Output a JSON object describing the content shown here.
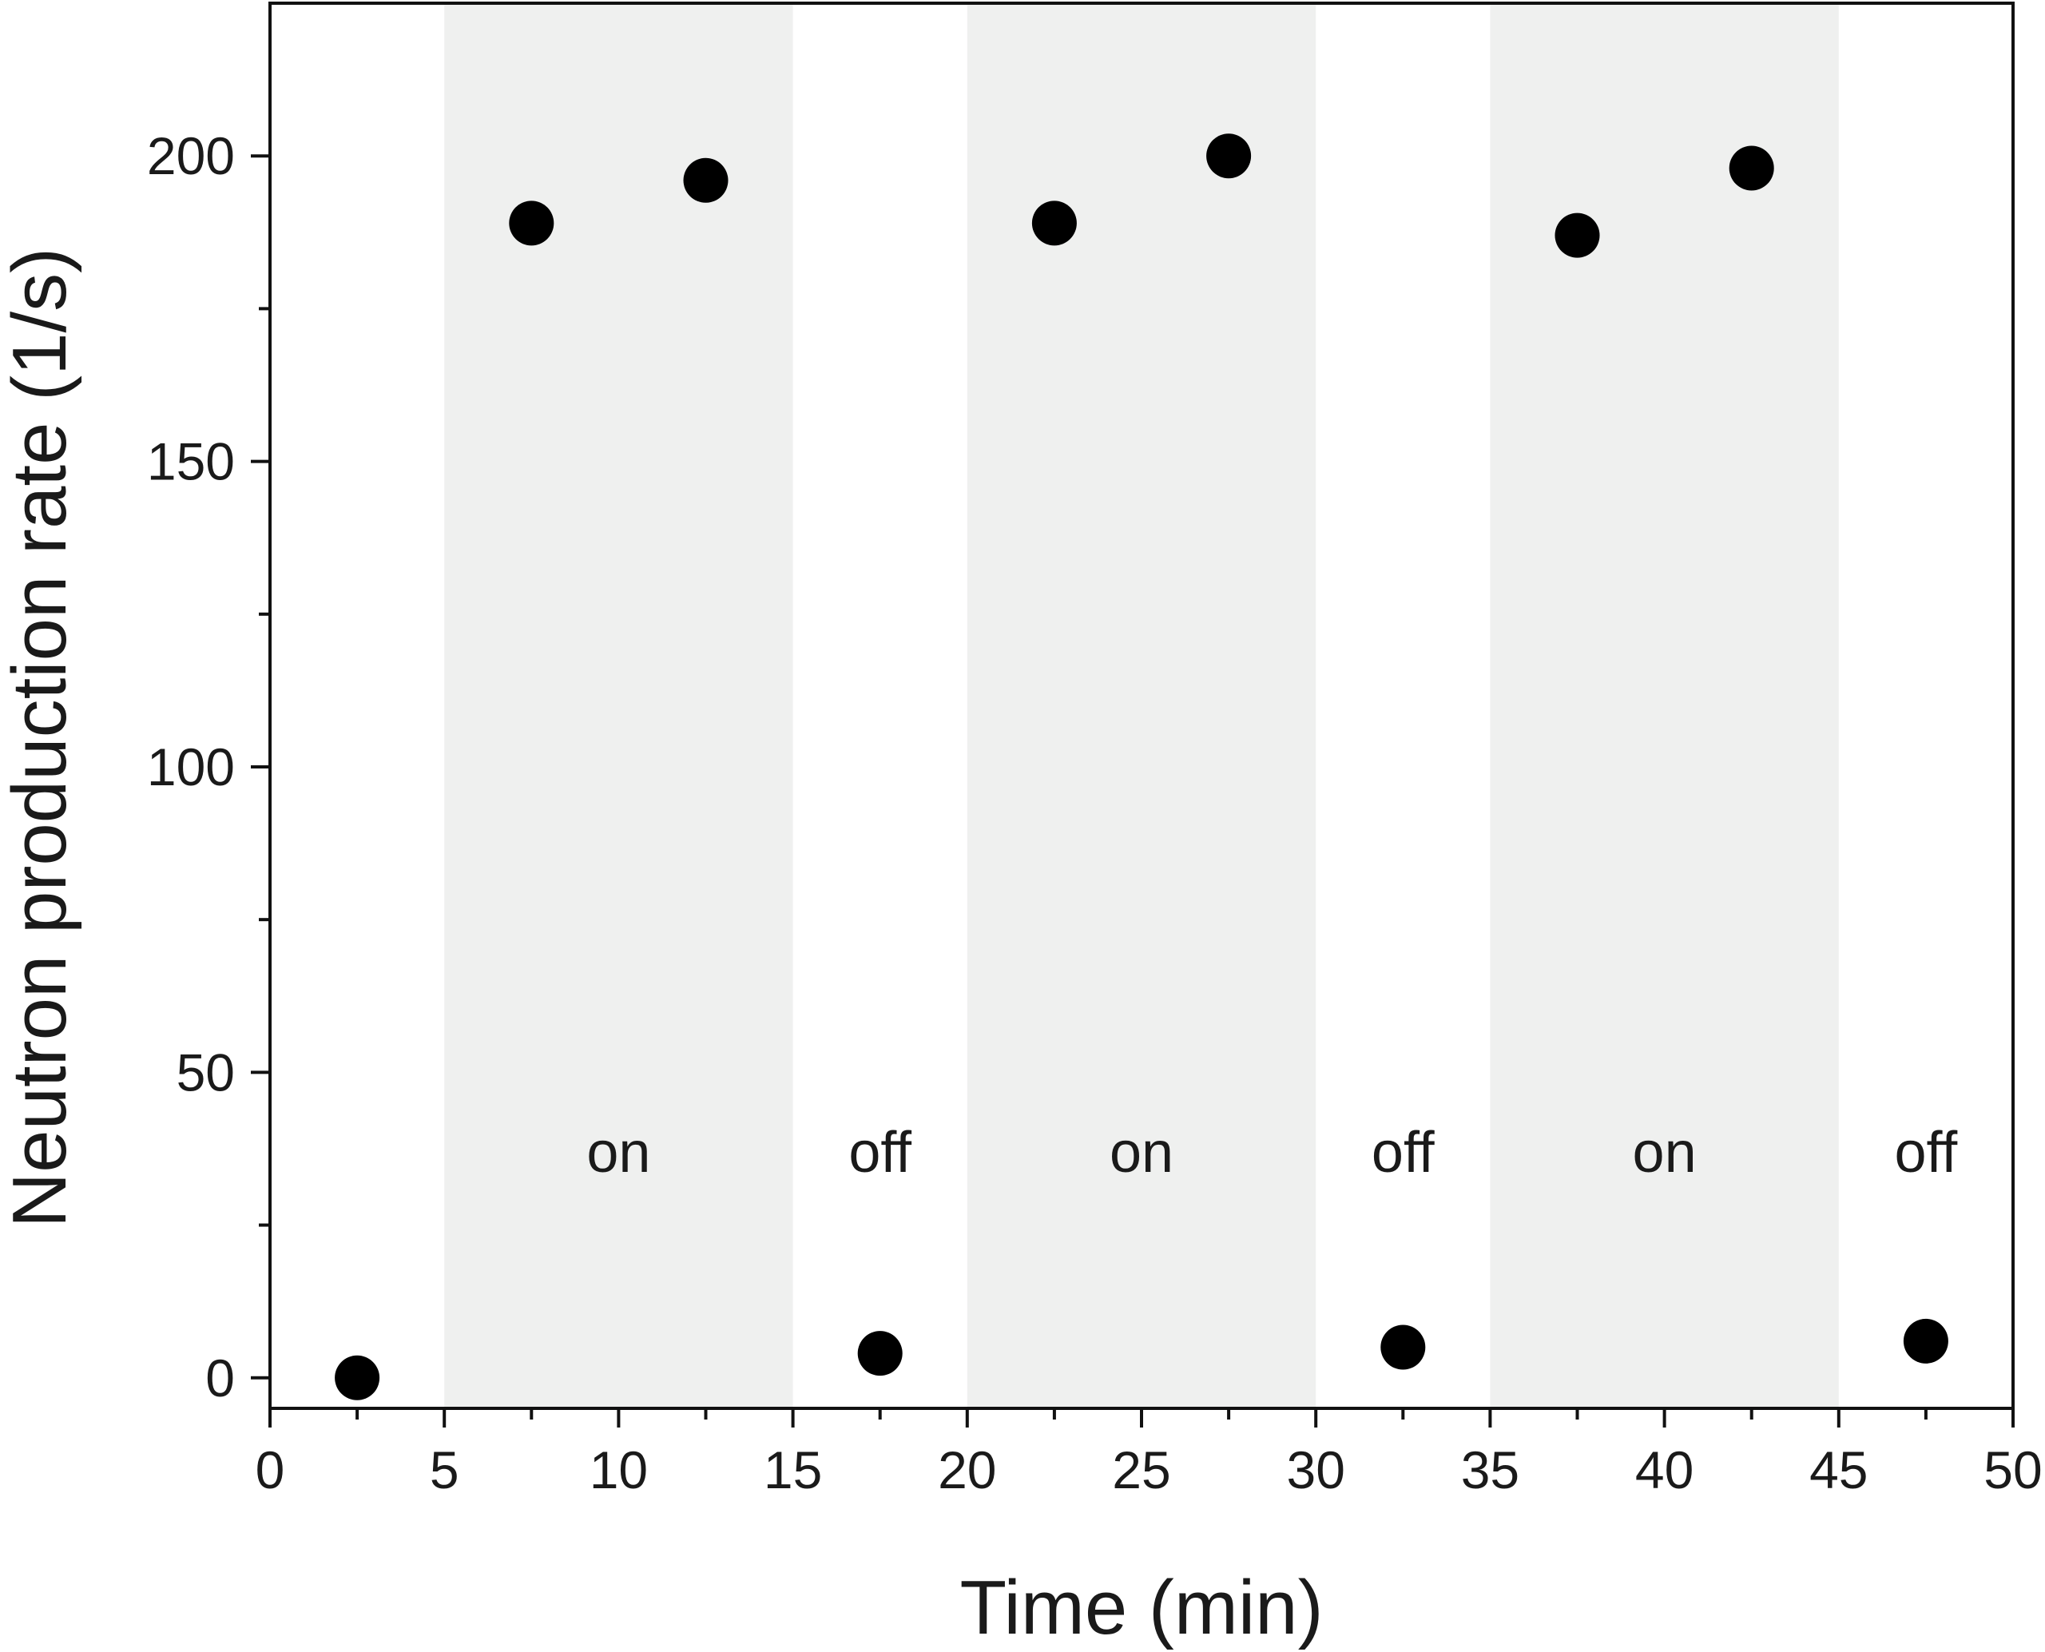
{
  "chart_data": {
    "type": "scatter",
    "xlabel": "Time (min)",
    "ylabel": "Neutron production rate (1/s)",
    "xlim": [
      0,
      50
    ],
    "ylim": [
      -5,
      225
    ],
    "x_ticks": [
      0,
      5,
      10,
      15,
      20,
      25,
      30,
      35,
      40,
      45,
      50
    ],
    "x_tick_labels": [
      "0",
      "5",
      "10",
      "15",
      "20",
      "25",
      "30",
      "35",
      "40",
      "45",
      "50"
    ],
    "y_ticks": [
      0,
      50,
      100,
      150,
      200
    ],
    "y_tick_labels": [
      "0",
      "50",
      "100",
      "150",
      "200"
    ],
    "y_minor_ticks": [
      25,
      75,
      125,
      175
    ],
    "grid": false,
    "series": [
      {
        "marker": "filled-circle",
        "color": "#000000",
        "points": [
          {
            "x": 2.5,
            "y": 0
          },
          {
            "x": 7.5,
            "y": 189
          },
          {
            "x": 12.5,
            "y": 196
          },
          {
            "x": 17.5,
            "y": 4
          },
          {
            "x": 22.5,
            "y": 189
          },
          {
            "x": 27.5,
            "y": 200
          },
          {
            "x": 32.5,
            "y": 5
          },
          {
            "x": 37.5,
            "y": 187
          },
          {
            "x": 42.5,
            "y": 198
          },
          {
            "x": 47.5,
            "y": 6
          }
        ]
      }
    ],
    "shaded_bands": [
      {
        "x_start": 5,
        "x_end": 15,
        "color": "#eff0ef"
      },
      {
        "x_start": 20,
        "x_end": 30,
        "color": "#eff0ef"
      },
      {
        "x_start": 35,
        "x_end": 45,
        "color": "#eff0ef"
      }
    ],
    "annotations": [
      {
        "text": "on",
        "x": 10,
        "y": 37
      },
      {
        "text": "off",
        "x": 17.5,
        "y": 37
      },
      {
        "text": "on",
        "x": 25,
        "y": 37
      },
      {
        "text": "off",
        "x": 32.5,
        "y": 37
      },
      {
        "text": "on",
        "x": 40,
        "y": 37
      },
      {
        "text": "off",
        "x": 47.5,
        "y": 37
      }
    ]
  }
}
